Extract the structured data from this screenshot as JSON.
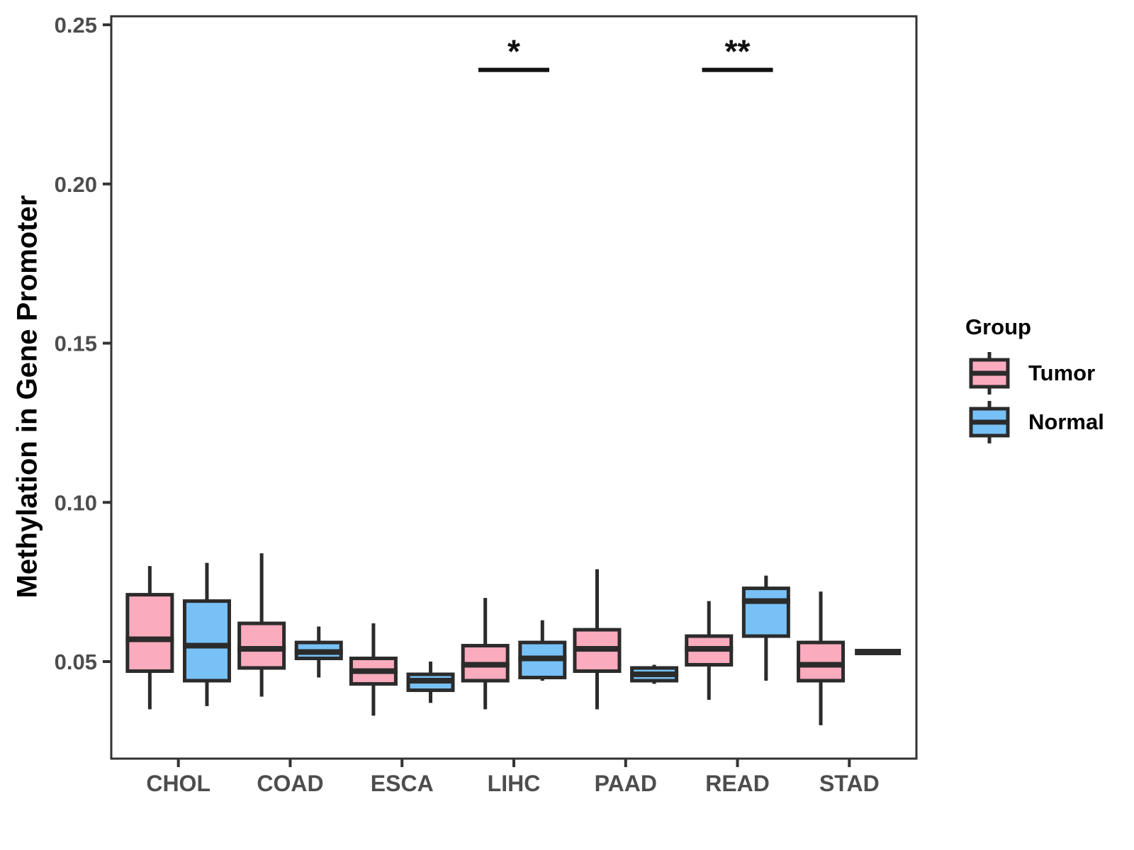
{
  "y_axis": {
    "label": "Methylation in Gene Promoter",
    "tick_labels": [
      "0.25",
      "0.20",
      "0.15",
      "0.10",
      "0.05"
    ],
    "tick_values": [
      0.25,
      0.2,
      0.15,
      0.1,
      0.05
    ]
  },
  "x_axis": {
    "categories": [
      "CHOL",
      "COAD",
      "ESCA",
      "LIHC",
      "PAAD",
      "READ",
      "STAD"
    ]
  },
  "legend": {
    "title": "Group",
    "items": [
      {
        "label": "Tumor",
        "color": "#FAABBE"
      },
      {
        "label": "Normal",
        "color": "#77C1F6"
      }
    ]
  },
  "colors": {
    "tumor_fill": "#FAABBE",
    "normal_fill": "#77C1F6",
    "box_stroke": "#2B2B2B",
    "panel_border": "#333333",
    "axis_text": "#4D4D4D",
    "annotation": "#111111"
  },
  "chart_data": {
    "type": "boxplot",
    "title": "",
    "xlabel": "",
    "ylabel": "Methylation in Gene Promoter",
    "ylim": [
      0.0195,
      0.2527
    ],
    "grid": false,
    "legend_position": "right",
    "categories": [
      "CHOL",
      "COAD",
      "ESCA",
      "LIHC",
      "PAAD",
      "READ",
      "STAD"
    ],
    "series": [
      {
        "name": "Tumor",
        "color": "#FAABBE",
        "boxes": [
          {
            "low": 0.035,
            "q1": 0.047,
            "median": 0.057,
            "q3": 0.071,
            "high": 0.08
          },
          {
            "low": 0.039,
            "q1": 0.048,
            "median": 0.054,
            "q3": 0.062,
            "high": 0.084
          },
          {
            "low": 0.033,
            "q1": 0.043,
            "median": 0.047,
            "q3": 0.051,
            "high": 0.062
          },
          {
            "low": 0.035,
            "q1": 0.044,
            "median": 0.049,
            "q3": 0.055,
            "high": 0.07
          },
          {
            "low": 0.035,
            "q1": 0.047,
            "median": 0.054,
            "q3": 0.06,
            "high": 0.079
          },
          {
            "low": 0.038,
            "q1": 0.049,
            "median": 0.054,
            "q3": 0.058,
            "high": 0.069
          },
          {
            "low": 0.03,
            "q1": 0.044,
            "median": 0.049,
            "q3": 0.056,
            "high": 0.072
          }
        ]
      },
      {
        "name": "Normal",
        "color": "#77C1F6",
        "boxes": [
          {
            "low": 0.036,
            "q1": 0.044,
            "median": 0.055,
            "q3": 0.069,
            "high": 0.081
          },
          {
            "low": 0.045,
            "q1": 0.051,
            "median": 0.053,
            "q3": 0.056,
            "high": 0.061
          },
          {
            "low": 0.037,
            "q1": 0.041,
            "median": 0.044,
            "q3": 0.046,
            "high": 0.05
          },
          {
            "low": 0.044,
            "q1": 0.045,
            "median": 0.051,
            "q3": 0.056,
            "high": 0.063
          },
          {
            "low": 0.043,
            "q1": 0.044,
            "median": 0.046,
            "q3": 0.048,
            "high": 0.049
          },
          {
            "low": 0.044,
            "q1": 0.058,
            "median": 0.069,
            "q3": 0.073,
            "high": 0.077
          },
          {
            "single": 0.053
          }
        ]
      }
    ],
    "significance": [
      {
        "category": "LIHC",
        "label": "*",
        "bar_value": 0.2365
      },
      {
        "category": "READ",
        "label": "**",
        "bar_value": 0.2365
      }
    ]
  }
}
